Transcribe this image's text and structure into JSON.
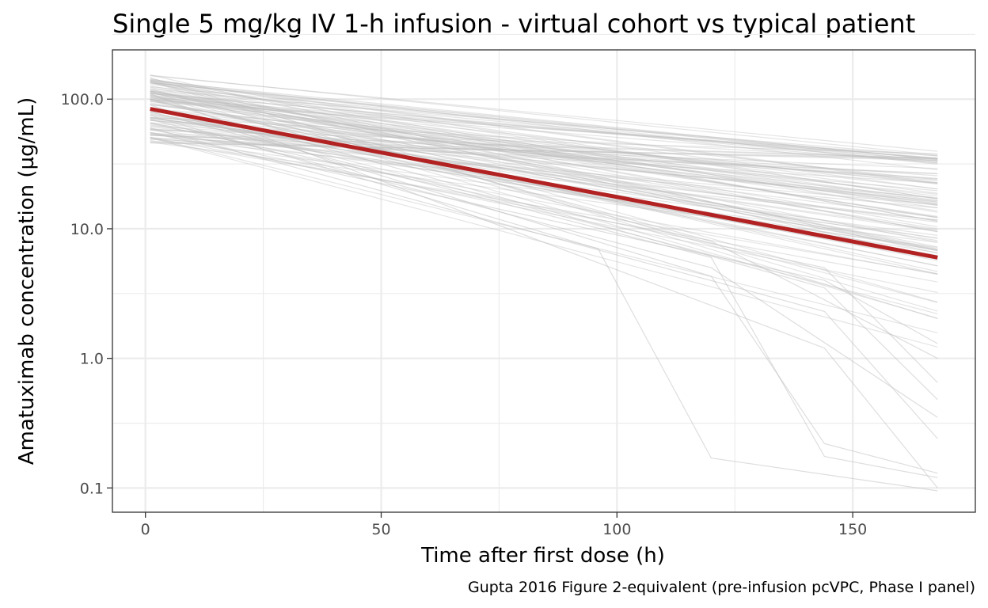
{
  "chart_data": {
    "type": "line",
    "title": "Single 5 mg/kg IV 1-h infusion - virtual cohort vs typical patient",
    "xlabel": "Time after first dose (h)",
    "ylabel": "Amatuximab concentration (µg/mL)",
    "caption": "Gupta 2016 Figure 2-equivalent (pre-infusion pcVPC, Phase I panel)",
    "x_scale": "linear",
    "y_scale": "log10",
    "xlim": [
      -7,
      176
    ],
    "ylim": [
      0.065,
      240
    ],
    "x_ticks": [
      0,
      50,
      100,
      150
    ],
    "x_tick_labels": [
      "0",
      "50",
      "100",
      "150"
    ],
    "y_ticks": [
      0.1,
      1,
      10,
      100
    ],
    "y_tick_labels": [
      "0.1",
      "1.0",
      "10.0",
      "100.0"
    ],
    "typical_patient": {
      "name": "Typical patient",
      "color": "#b22222",
      "x": [
        1,
        168
      ],
      "y": [
        84,
        6
      ]
    },
    "virtual_cohort": {
      "name": "Virtual cohort",
      "color": "#bebebe",
      "n_subjects": 120,
      "time_range": [
        1,
        168
      ],
      "start_range": [
        43,
        165
      ],
      "end_range_typical": [
        1.0,
        40
      ],
      "collapsing_subjects": [
        {
          "x": [
            1,
            96,
            120,
            168
          ],
          "y": [
            75,
            7,
            0.17,
            0.095
          ]
        },
        {
          "x": [
            1,
            120,
            144,
            168
          ],
          "y": [
            90,
            4.3,
            0.22,
            0.13
          ]
        },
        {
          "x": [
            1,
            120,
            144,
            168
          ],
          "y": [
            80,
            6,
            0.175,
            0.12
          ]
        },
        {
          "x": [
            1,
            144,
            168
          ],
          "y": [
            110,
            1.2,
            0.1
          ]
        },
        {
          "x": [
            1,
            144,
            168
          ],
          "y": [
            60,
            2.3,
            0.24
          ]
        },
        {
          "x": [
            1,
            120,
            168
          ],
          "y": [
            70,
            5,
            0.35
          ]
        },
        {
          "x": [
            1,
            144,
            168
          ],
          "y": [
            100,
            3.5,
            0.48
          ]
        },
        {
          "x": [
            1,
            144,
            168
          ],
          "y": [
            65,
            5,
            0.65
          ]
        },
        {
          "x": [
            1,
            120,
            168
          ],
          "y": [
            120,
            8,
            1.0
          ]
        },
        {
          "x": [
            1,
            144,
            168
          ],
          "y": [
            55,
            4,
            1.3
          ]
        }
      ]
    }
  }
}
